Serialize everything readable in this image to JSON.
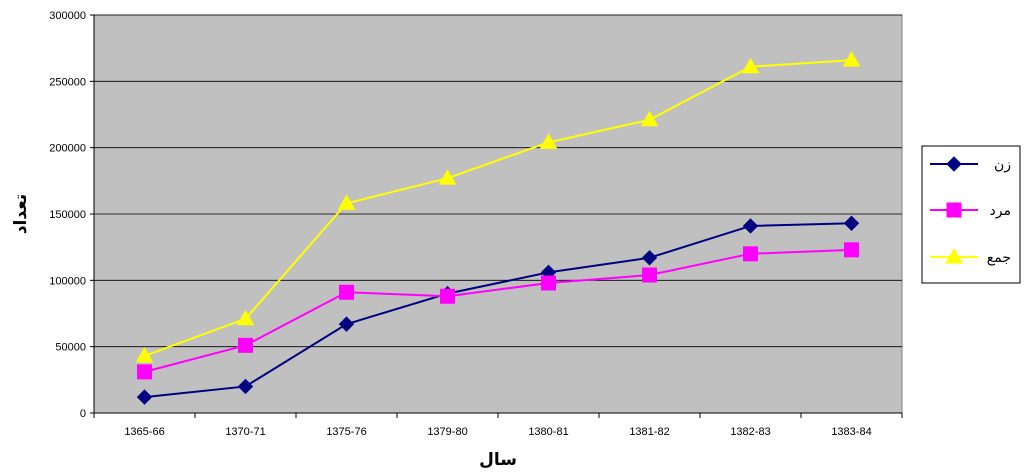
{
  "chart_data": {
    "type": "line",
    "title": "",
    "xlabel": "سال",
    "ylabel": "تعداد",
    "categories": [
      "1365-66",
      "1370-71",
      "1375-76",
      "1379-80",
      "1380-81",
      "1381-82",
      "1382-83",
      "1383-84"
    ],
    "ylim": [
      0,
      300000
    ],
    "yticks": [
      0,
      50000,
      100000,
      150000,
      200000,
      250000,
      300000
    ],
    "grid": true,
    "plot_background": "#c0c0c0",
    "legend_position": "right",
    "series": [
      {
        "name": "زن",
        "color": "#000080",
        "marker": "diamond",
        "values": [
          12000,
          20000,
          67000,
          90000,
          106000,
          117000,
          141000,
          143000
        ]
      },
      {
        "name": "مرد",
        "color": "#ff00ff",
        "marker": "square",
        "values": [
          31000,
          51000,
          91000,
          88000,
          98000,
          104000,
          120000,
          123000
        ]
      },
      {
        "name": "جمع",
        "color": "#ffff00",
        "marker": "triangle",
        "values": [
          43000,
          71000,
          158000,
          177000,
          204000,
          221000,
          261000,
          266000
        ]
      }
    ]
  }
}
